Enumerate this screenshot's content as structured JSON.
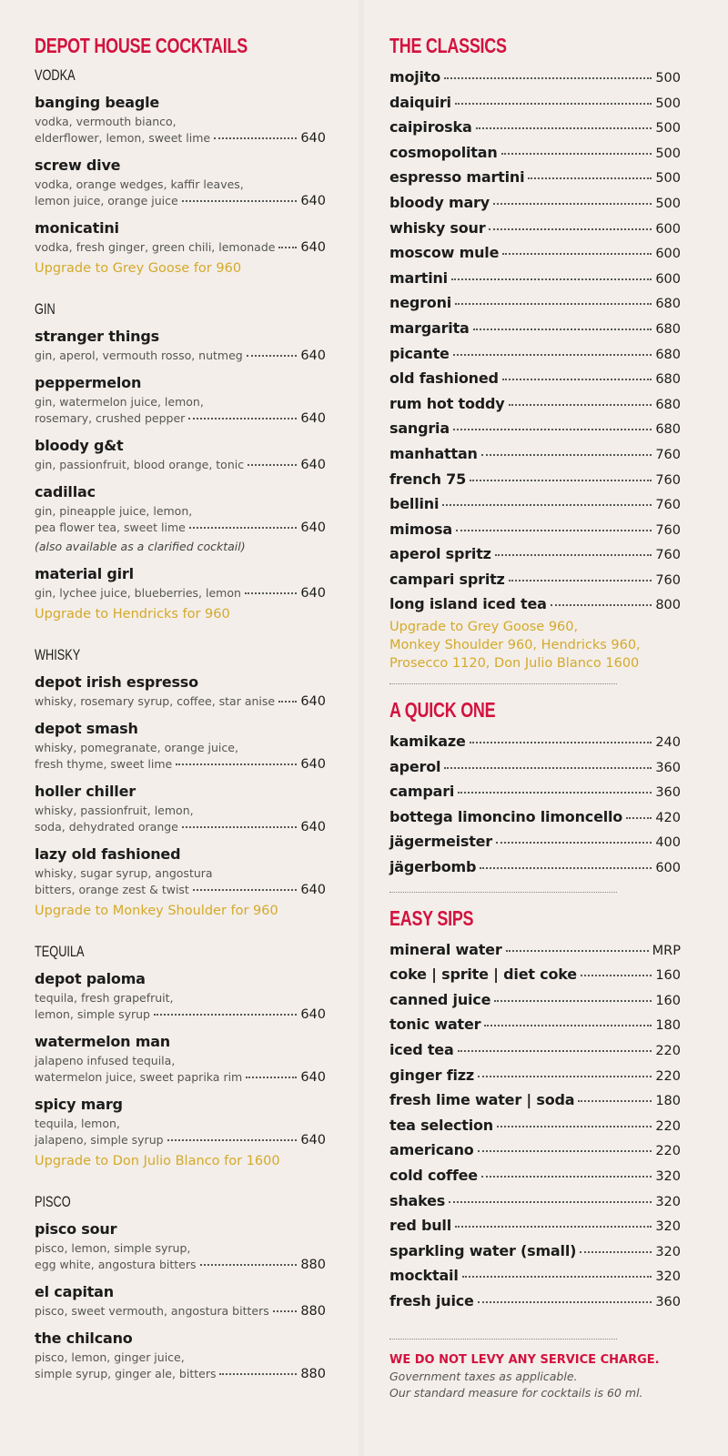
{
  "colors": {
    "background": "#f3eee9",
    "heading": "#d3123f",
    "upgrade": "#d4a92a",
    "text": "#1c1c1c"
  },
  "left": {
    "title": "DEPOT HOUSE COCKTAILS",
    "sections": [
      {
        "title": "VODKA",
        "items": [
          {
            "name": "banging beagle",
            "desc": [
              "vodka, vermouth bianco,",
              "elderflower, lemon, sweet lime"
            ],
            "price": "640"
          },
          {
            "name": "screw dive",
            "desc": [
              "vodka, orange wedges, kaffir leaves,",
              "lemon juice, orange juice"
            ],
            "price": "640"
          },
          {
            "name": "monicatini",
            "desc": [
              "vodka, fresh ginger, green chili, lemonade"
            ],
            "price": "640"
          }
        ],
        "upgrade": "Upgrade to Grey Goose for 960"
      },
      {
        "title": "GIN",
        "items": [
          {
            "name": "stranger things",
            "desc": [
              "gin, aperol, vermouth rosso, nutmeg"
            ],
            "price": "640"
          },
          {
            "name": "peppermelon",
            "desc": [
              "gin, watermelon juice, lemon,",
              "rosemary, crushed pepper"
            ],
            "price": "640"
          },
          {
            "name": "bloody g&t",
            "desc": [
              "gin, passionfruit, blood orange, tonic"
            ],
            "price": "640"
          },
          {
            "name": "cadillac",
            "desc": [
              "gin, pineapple juice, lemon,",
              "pea flower tea, sweet lime"
            ],
            "price": "640",
            "note": "(also available as a clarified cocktail)"
          },
          {
            "name": "material girl",
            "desc": [
              "gin, lychee juice, blueberries, lemon"
            ],
            "price": "640"
          }
        ],
        "upgrade": "Upgrade to Hendricks for 960"
      },
      {
        "title": "WHISKY",
        "items": [
          {
            "name": "depot irish espresso",
            "desc": [
              "whisky, rosemary syrup, coffee, star anise"
            ],
            "price": "640"
          },
          {
            "name": "depot smash",
            "desc": [
              "whisky, pomegranate, orange juice,",
              "fresh thyme, sweet lime"
            ],
            "price": "640"
          },
          {
            "name": "holler chiller",
            "desc": [
              "whisky, passionfruit, lemon,",
              "soda, dehydrated orange"
            ],
            "price": "640"
          },
          {
            "name": "lazy old fashioned",
            "desc": [
              "whisky, sugar syrup, angostura",
              "bitters, orange zest & twist"
            ],
            "price": "640"
          }
        ],
        "upgrade": "Upgrade to Monkey Shoulder for 960"
      },
      {
        "title": "TEQUILA",
        "items": [
          {
            "name": "depot paloma",
            "desc": [
              "tequila, fresh grapefruit,",
              "lemon, simple syrup"
            ],
            "price": "640"
          },
          {
            "name": "watermelon man",
            "desc": [
              "jalapeno infused tequila,",
              "watermelon juice, sweet paprika rim"
            ],
            "price": "640"
          },
          {
            "name": "spicy marg",
            "desc": [
              "tequila, lemon,",
              "jalapeno, simple syrup"
            ],
            "price": "640"
          }
        ],
        "upgrade": "Upgrade to Don Julio Blanco for 1600"
      },
      {
        "title": "PISCO",
        "items": [
          {
            "name": "pisco sour",
            "desc": [
              "pisco, lemon, simple syrup,",
              "egg white, angostura bitters"
            ],
            "price": "880"
          },
          {
            "name": "el capitan",
            "desc": [
              "pisco, sweet vermouth, angostura bitters"
            ],
            "price": "880"
          },
          {
            "name": "the chilcano",
            "desc": [
              "pisco, lemon, ginger juice,",
              "simple syrup, ginger ale, bitters"
            ],
            "price": "880"
          }
        ]
      }
    ]
  },
  "right": {
    "sections": [
      {
        "title": "THE CLASSICS",
        "items": [
          [
            "mojito",
            "500"
          ],
          [
            "daiquiri",
            "500"
          ],
          [
            "caipiroska",
            "500"
          ],
          [
            "cosmopolitan",
            "500"
          ],
          [
            "espresso martini",
            "500"
          ],
          [
            "bloody mary",
            "500"
          ],
          [
            "whisky sour",
            "600"
          ],
          [
            "moscow mule",
            "600"
          ],
          [
            "martini",
            "600"
          ],
          [
            "negroni",
            "680"
          ],
          [
            "margarita",
            "680"
          ],
          [
            "picante",
            "680"
          ],
          [
            "old fashioned",
            "680"
          ],
          [
            "rum hot toddy",
            "680"
          ],
          [
            "sangria",
            "680"
          ],
          [
            "manhattan",
            "760"
          ],
          [
            "french 75",
            "760"
          ],
          [
            "bellini",
            "760"
          ],
          [
            "mimosa",
            "760"
          ],
          [
            "aperol spritz",
            "760"
          ],
          [
            "campari spritz",
            "760"
          ],
          [
            "long island iced tea",
            "800"
          ]
        ],
        "upgrade": [
          "Upgrade to Grey Goose 960,",
          "Monkey Shoulder 960, Hendricks 960,",
          "Prosecco 1120, Don Julio Blanco 1600"
        ]
      },
      {
        "title": "A QUICK ONE",
        "items": [
          [
            "kamikaze",
            "240"
          ],
          [
            "aperol",
            "360"
          ],
          [
            "campari",
            "360"
          ],
          [
            "bottega limoncino limoncello",
            "420"
          ],
          [
            "jägermeister",
            "400"
          ],
          [
            "jägerbomb",
            "600"
          ]
        ]
      },
      {
        "title": "EASY SIPS",
        "items": [
          [
            "mineral water",
            "MRP"
          ],
          [
            "coke | sprite | diet coke",
            "160"
          ],
          [
            "canned juice",
            "160"
          ],
          [
            "tonic water",
            "180"
          ],
          [
            "iced tea",
            "220"
          ],
          [
            "ginger fizz",
            "220"
          ],
          [
            "fresh lime water | soda",
            "180"
          ],
          [
            "tea selection",
            "220"
          ],
          [
            "americano",
            "220"
          ],
          [
            "cold coffee",
            "320"
          ],
          [
            "shakes",
            "320"
          ],
          [
            "red bull",
            "320"
          ],
          [
            "sparkling water (small)",
            "320"
          ],
          [
            "mocktail",
            "320"
          ],
          [
            "fresh juice",
            "360"
          ]
        ]
      }
    ],
    "footer": {
      "service": "WE DO NOT LEVY ANY SERVICE CHARGE.",
      "taxes": "Government taxes as applicable.",
      "measure": "Our standard measure for cocktails is 60 ml."
    }
  }
}
